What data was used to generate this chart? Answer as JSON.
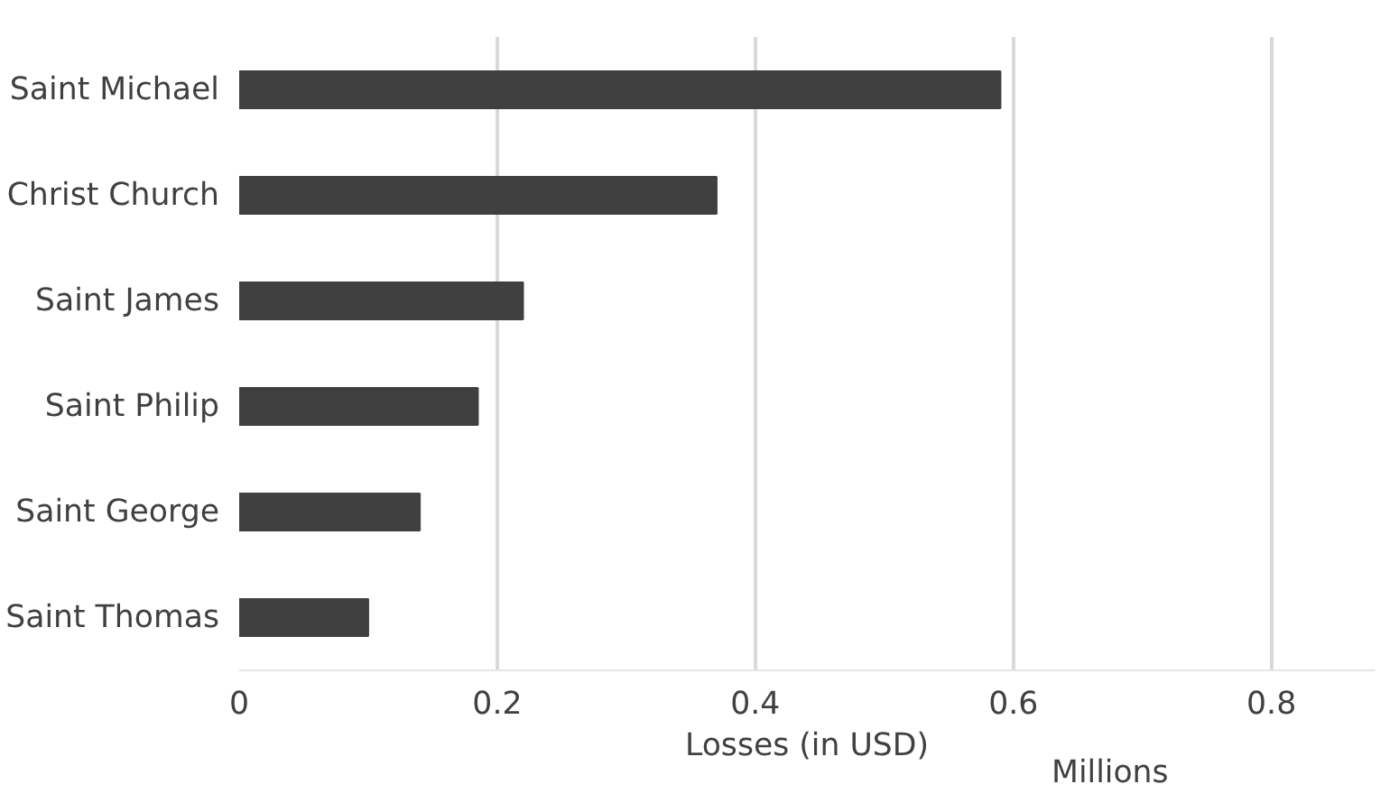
{
  "chart_data": {
    "type": "bar",
    "orientation": "horizontal",
    "xlabel": "Losses (in USD)",
    "categories": [
      "Saint Michael",
      "Christ Church",
      "Saint James",
      "Saint Philip",
      "Saint George",
      "Saint Thomas"
    ],
    "values": [
      0.59,
      0.37,
      0.22,
      0.185,
      0.14,
      0.1
    ],
    "color": "#404040",
    "xlim": [
      0,
      0.88
    ],
    "xticks": [
      0,
      0.2,
      0.4,
      0.6,
      0.8
    ],
    "grid": "x",
    "annotations": [
      "Millions"
    ]
  }
}
